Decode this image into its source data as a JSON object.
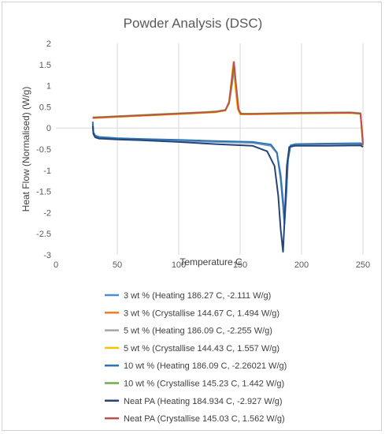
{
  "chart_data": {
    "type": "line",
    "title": "Powder Analysis (DSC)",
    "xlabel": "Temperature C",
    "ylabel": "Heat Flow (Normalised) (W/g)",
    "xlim": [
      0,
      250
    ],
    "ylim": [
      -3,
      2
    ],
    "xticks": [
      0,
      50,
      100,
      150,
      200,
      250
    ],
    "yticks": [
      2,
      1.5,
      1,
      0.5,
      0,
      -0.5,
      -1,
      -1.5,
      -2,
      -2.5,
      -3
    ],
    "grid": "vertical only",
    "legend_position": "bottom",
    "series": [
      {
        "name": "3 wt % (Heating 186.27 C, -2.111 W/g)",
        "color": "#4a8fd6",
        "x": [
          30,
          30.5,
          32,
          35,
          50,
          70,
          100,
          130,
          160,
          175,
          180,
          183,
          185,
          186.27,
          187.5,
          189,
          191,
          195,
          220,
          248,
          250
        ],
        "y": [
          0.1,
          -0.12,
          -0.2,
          -0.23,
          -0.26,
          -0.28,
          -0.3,
          -0.33,
          -0.35,
          -0.42,
          -0.6,
          -1.1,
          -1.7,
          -2.111,
          -1.5,
          -0.7,
          -0.42,
          -0.39,
          -0.38,
          -0.38,
          -0.4
        ]
      },
      {
        "name": "3 wt % (Crystallise 144.67 C, 1.494 W/g)",
        "color": "#ed7d31",
        "x": [
          30,
          50,
          80,
          110,
          130,
          138,
          141,
          143,
          144.67,
          146,
          148,
          150,
          160,
          200,
          240,
          248,
          250
        ],
        "y": [
          0.24,
          0.27,
          0.31,
          0.35,
          0.38,
          0.42,
          0.6,
          1.1,
          1.494,
          1.0,
          0.45,
          0.33,
          0.33,
          0.35,
          0.36,
          0.34,
          -0.3
        ]
      },
      {
        "name": "5 wt % (Heating 186.09 C, -2.255 W/g)",
        "color": "#a5a5a5",
        "x": [
          30,
          30.5,
          32,
          35,
          50,
          70,
          100,
          130,
          160,
          175,
          180,
          183,
          185,
          186.09,
          187.5,
          189,
          191,
          195,
          220,
          248,
          250
        ],
        "y": [
          0.12,
          -0.12,
          -0.2,
          -0.22,
          -0.25,
          -0.27,
          -0.29,
          -0.32,
          -0.34,
          -0.4,
          -0.6,
          -1.2,
          -1.8,
          -2.255,
          -1.6,
          -0.75,
          -0.42,
          -0.39,
          -0.38,
          -0.37,
          -0.4
        ]
      },
      {
        "name": "5 wt % (Crystallise 144.43 C, 1.557 W/g)",
        "color": "#ffc000",
        "x": [
          30,
          50,
          80,
          110,
          130,
          138,
          141,
          143,
          144.43,
          146,
          148,
          150,
          160,
          200,
          240,
          248,
          250
        ],
        "y": [
          0.23,
          0.26,
          0.3,
          0.34,
          0.37,
          0.41,
          0.6,
          1.15,
          1.557,
          1.05,
          0.45,
          0.32,
          0.32,
          0.34,
          0.35,
          0.33,
          -0.45
        ]
      },
      {
        "name": "10 wt % (Heating 186.09 C, -2.26021 W/g)",
        "color": "#2e75b6",
        "x": [
          30,
          30.5,
          32,
          35,
          50,
          70,
          100,
          130,
          160,
          175,
          180,
          183,
          185,
          186.09,
          187.5,
          189,
          191,
          195,
          220,
          248,
          250
        ],
        "y": [
          0.15,
          -0.1,
          -0.18,
          -0.21,
          -0.24,
          -0.26,
          -0.28,
          -0.31,
          -0.33,
          -0.39,
          -0.58,
          -1.2,
          -1.85,
          -2.26021,
          -1.6,
          -0.75,
          -0.41,
          -0.38,
          -0.37,
          -0.36,
          -0.4
        ]
      },
      {
        "name": "10 wt % (Crystallise 145.23 C, 1.442 W/g)",
        "color": "#70ad47",
        "x": [
          30,
          50,
          80,
          110,
          130,
          138,
          141,
          143.5,
          145.23,
          147,
          149,
          151,
          160,
          200,
          240,
          248,
          250
        ],
        "y": [
          0.25,
          0.28,
          0.32,
          0.36,
          0.39,
          0.43,
          0.58,
          1.05,
          1.442,
          0.95,
          0.42,
          0.34,
          0.34,
          0.36,
          0.37,
          0.35,
          -0.35
        ]
      },
      {
        "name": "Neat PA (Heating 184.934 C, -2.927 W/g)",
        "color": "#264478",
        "x": [
          30,
          30.5,
          32,
          35,
          50,
          70,
          100,
          130,
          160,
          172,
          178,
          181,
          183,
          184.934,
          186.5,
          188,
          190,
          195,
          220,
          248,
          250
        ],
        "y": [
          0.05,
          -0.14,
          -0.22,
          -0.25,
          -0.27,
          -0.29,
          -0.33,
          -0.38,
          -0.42,
          -0.55,
          -0.9,
          -1.6,
          -2.4,
          -2.927,
          -2.0,
          -0.9,
          -0.45,
          -0.42,
          -0.42,
          -0.41,
          -0.45
        ]
      },
      {
        "name": "Neat PA (Crystallise 145.03 C, 1.562 W/g)",
        "color": "#c0504d",
        "x": [
          30,
          50,
          80,
          110,
          130,
          138,
          141,
          143.3,
          145.03,
          146.5,
          148.5,
          150.5,
          160,
          200,
          240,
          248,
          250
        ],
        "y": [
          0.24,
          0.27,
          0.31,
          0.35,
          0.38,
          0.42,
          0.62,
          1.15,
          1.562,
          1.05,
          0.45,
          0.33,
          0.33,
          0.35,
          0.36,
          0.34,
          -0.4
        ]
      }
    ]
  }
}
